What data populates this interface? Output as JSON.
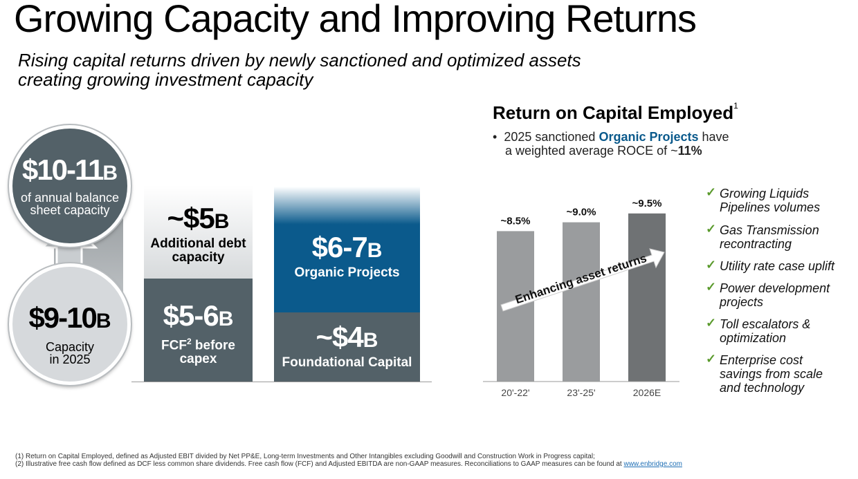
{
  "title": "Growing Capacity and Improving Returns",
  "subtitle": {
    "line1": "Rising capital returns driven by newly sanctioned and optimized assets",
    "line2": "creating growing investment capacity"
  },
  "capacity": {
    "top_circle": {
      "value": "$10-11",
      "unit": "B",
      "label_line1": "of annual balance",
      "label_line2": "sheet capacity"
    },
    "bottom_circle": {
      "value": "$9-10",
      "unit": "B",
      "label_line1": "Capacity",
      "label_line2": "in 2025"
    }
  },
  "colors": {
    "dark_slate": "#536168",
    "light_grey": "#d6d9dc",
    "blue": "#0b5a8c",
    "bar_light": "#9a9c9e",
    "bar_dark": "#6f7274",
    "check_green": "#5a9a2c",
    "link_blue": "#1f6fb5"
  },
  "blocks": {
    "debt": {
      "value": "~$5",
      "unit": "B",
      "label_line1": "Additional debt",
      "label_line2": "capacity"
    },
    "fcf": {
      "value": "$5-6",
      "unit": "B",
      "label_line1": "FCF",
      "label_sup": "2",
      "label_line1_rest": " before",
      "label_line2": "capex"
    },
    "organic": {
      "value": "$6-7",
      "unit": "B",
      "label": "Organic Projects"
    },
    "foundational": {
      "value": "~$4",
      "unit": "B",
      "label": "Foundational Capital"
    }
  },
  "roce": {
    "heading": "Return on Capital Employed",
    "heading_sup": "1",
    "bullet_pre": "2025 sanctioned ",
    "bullet_highlight": "Organic Projects",
    "bullet_post": " have",
    "bullet_line2_pre": "a weighted average ROCE of ~",
    "bullet_line2_value": "11%",
    "arrow_label": "Enhancing asset returns"
  },
  "chart_data": {
    "type": "bar",
    "title": "Return on Capital Employed",
    "categories": [
      "20'-22'",
      "23'-25'",
      "2026E"
    ],
    "values": [
      8.5,
      9.0,
      9.5
    ],
    "data_labels": [
      "~8.5%",
      "~9.0%",
      "~9.5%"
    ],
    "ylabel": "",
    "xlabel": "",
    "ylim": [
      0,
      10
    ],
    "grid": false
  },
  "checks": [
    {
      "line1": "Growing Liquids",
      "line2": "Pipelines volumes"
    },
    {
      "line1": "Gas Transmission",
      "line2": "recontracting"
    },
    {
      "line1": "Utility rate case uplift"
    },
    {
      "line1": "Power development",
      "line2": "projects"
    },
    {
      "line1": "Toll escalators &",
      "line2": "optimization"
    },
    {
      "line1": "Enterprise cost",
      "line2": "savings from scale",
      "line3": "and technology"
    }
  ],
  "footnotes": {
    "note1": "(1) Return on Capital Employed, defined as Adjusted EBIT divided by Net PP&E, Long-term Investments and Other Intangibles excluding Goodwill and Construction Work in Progress capital;",
    "note2": "(2) Illustrative free cash flow defined as DCF less common share dividends. Free cash flow (FCF) and Adjusted EBITDA are non-GAAP measures. Reconciliations to GAAP measures can be found at ",
    "link": "www.enbridge.com"
  }
}
